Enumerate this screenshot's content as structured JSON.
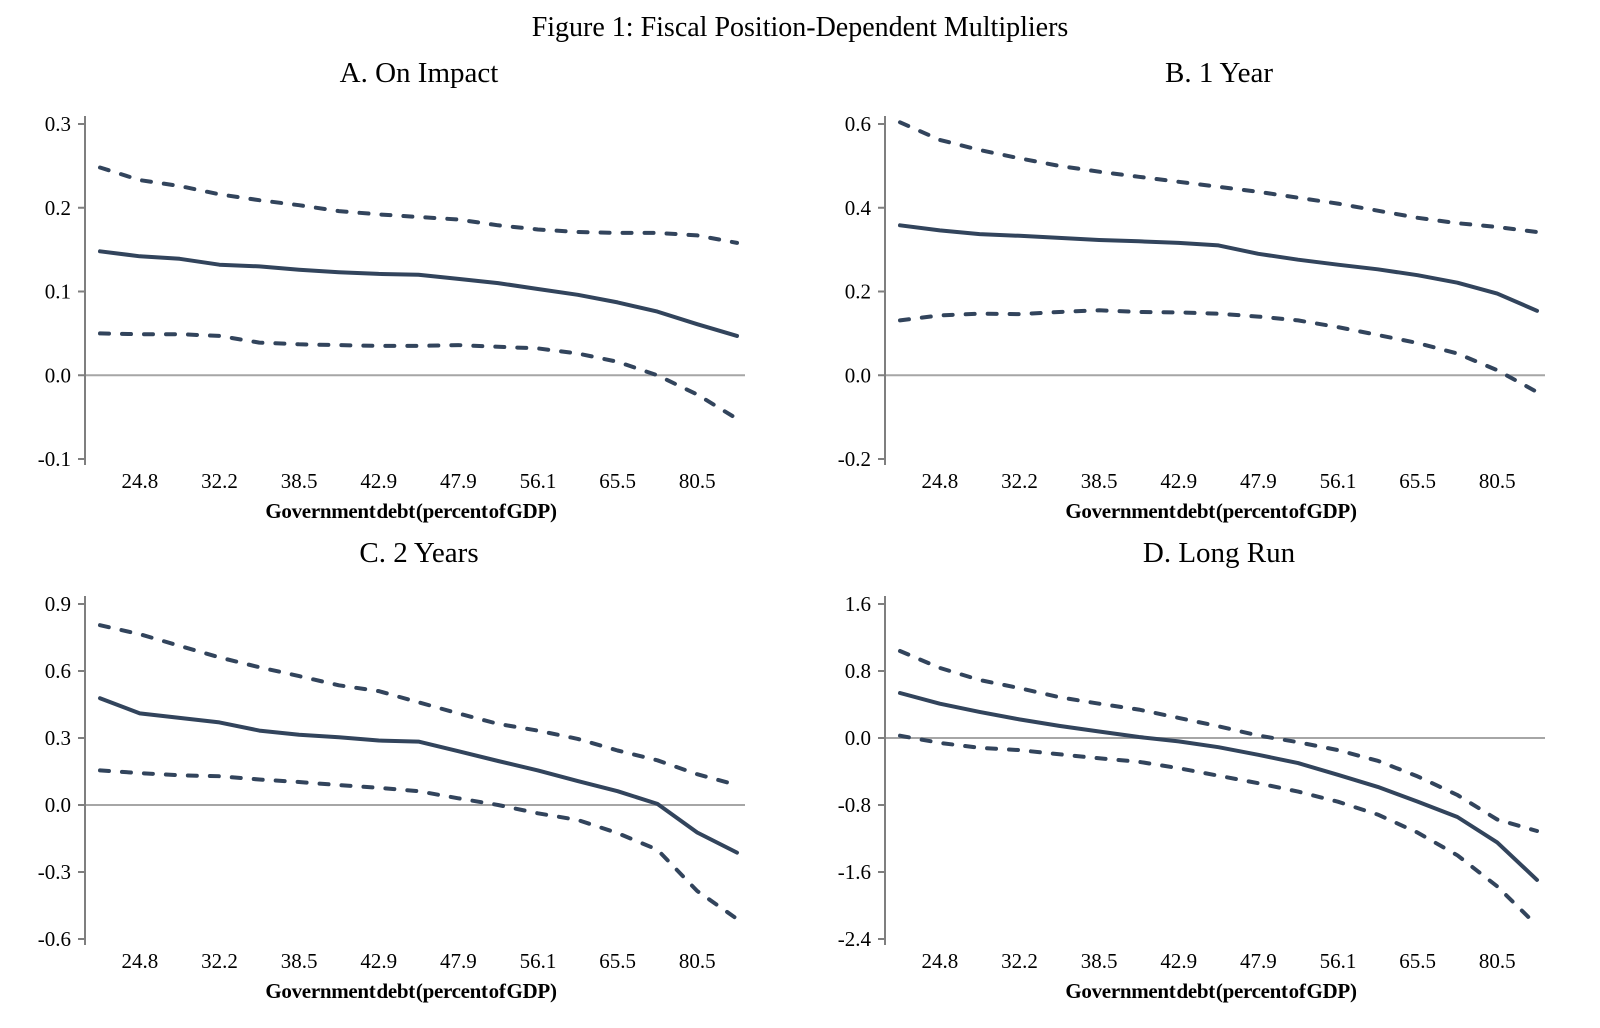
{
  "figure": {
    "title": "Figure 1: Fiscal Position-Dependent Multipliers"
  },
  "colors": {
    "line": "#32445c",
    "zero_line": "#a6a6a6",
    "axis": "#7f7f7f",
    "text": "#000000",
    "background": "#ffffff"
  },
  "chart_data": [
    {
      "id": "A",
      "type": "line",
      "title": "A. On Impact",
      "xlabel": "Government debt (percent of GDP)",
      "x_tick_labels": [
        "24.8",
        "32.2",
        "38.5",
        "42.9",
        "47.9",
        "56.1",
        "65.5",
        "80.5"
      ],
      "x_tick_indices": [
        1,
        3,
        5,
        7,
        9,
        11,
        13,
        15
      ],
      "n_points": 17,
      "ylim": [
        -0.1,
        0.3
      ],
      "y_tick_labels": [
        "0.3",
        "0.2",
        "0.1",
        "0.0",
        "-0.1"
      ],
      "zero_line": true,
      "legend": "none",
      "grid": false,
      "series": [
        {
          "name": "point estimate",
          "line_style": "solid",
          "values": [
            0.148,
            0.142,
            0.139,
            0.132,
            0.13,
            0.126,
            0.123,
            0.121,
            0.12,
            0.115,
            0.11,
            0.103,
            0.096,
            0.087,
            0.076,
            0.061,
            0.047
          ]
        },
        {
          "name": "upper confidence band",
          "line_style": "dashed",
          "values": [
            0.248,
            0.233,
            0.226,
            0.216,
            0.209,
            0.203,
            0.196,
            0.192,
            0.189,
            0.186,
            0.179,
            0.174,
            0.171,
            0.17,
            0.17,
            0.167,
            0.158
          ]
        },
        {
          "name": "lower confidence band",
          "line_style": "dashed",
          "values": [
            0.05,
            0.049,
            0.049,
            0.047,
            0.039,
            0.037,
            0.036,
            0.035,
            0.035,
            0.036,
            0.034,
            0.032,
            0.026,
            0.016,
            0.0,
            -0.023,
            -0.052
          ]
        }
      ]
    },
    {
      "id": "B",
      "type": "line",
      "title": "B. 1 Year",
      "xlabel": "Government debt (percent of GDP)",
      "x_tick_labels": [
        "24.8",
        "32.2",
        "38.5",
        "42.9",
        "47.9",
        "56.1",
        "65.5",
        "80.5"
      ],
      "x_tick_indices": [
        1,
        3,
        5,
        7,
        9,
        11,
        13,
        15
      ],
      "n_points": 17,
      "ylim": [
        -0.2,
        0.6
      ],
      "y_tick_labels": [
        "0.6",
        "0.4",
        "0.2",
        "0.0",
        "-0.2"
      ],
      "zero_line": true,
      "legend": "none",
      "grid": false,
      "series": [
        {
          "name": "point estimate",
          "line_style": "solid",
          "values": [
            0.358,
            0.346,
            0.337,
            0.333,
            0.328,
            0.323,
            0.32,
            0.316,
            0.31,
            0.29,
            0.276,
            0.264,
            0.253,
            0.239,
            0.221,
            0.195,
            0.154
          ]
        },
        {
          "name": "upper confidence band",
          "line_style": "dashed",
          "values": [
            0.604,
            0.562,
            0.538,
            0.518,
            0.5,
            0.486,
            0.474,
            0.462,
            0.45,
            0.438,
            0.424,
            0.41,
            0.393,
            0.376,
            0.363,
            0.354,
            0.342
          ]
        },
        {
          "name": "lower confidence band",
          "line_style": "dashed",
          "values": [
            0.131,
            0.143,
            0.147,
            0.146,
            0.151,
            0.155,
            0.151,
            0.15,
            0.147,
            0.14,
            0.131,
            0.115,
            0.096,
            0.077,
            0.052,
            0.012,
            -0.04
          ]
        }
      ]
    },
    {
      "id": "C",
      "type": "line",
      "title": "C. 2 Years",
      "xlabel": "Government debt (percent of GDP)",
      "x_tick_labels": [
        "24.8",
        "32.2",
        "38.5",
        "42.9",
        "47.9",
        "56.1",
        "65.5",
        "80.5"
      ],
      "x_tick_indices": [
        1,
        3,
        5,
        7,
        9,
        11,
        13,
        15
      ],
      "n_points": 17,
      "ylim": [
        -0.6,
        0.9
      ],
      "y_tick_labels": [
        "0.9",
        "0.6",
        "0.3",
        "0.0",
        "-0.3",
        "-0.6"
      ],
      "zero_line": true,
      "legend": "none",
      "grid": false,
      "series": [
        {
          "name": "point estimate",
          "line_style": "solid",
          "values": [
            0.478,
            0.41,
            0.39,
            0.37,
            0.333,
            0.315,
            0.303,
            0.289,
            0.284,
            0.241,
            0.197,
            0.155,
            0.107,
            0.062,
            0.005,
            -0.123,
            -0.213
          ]
        },
        {
          "name": "upper confidence band",
          "line_style": "dashed",
          "values": [
            0.805,
            0.765,
            0.713,
            0.661,
            0.617,
            0.577,
            0.536,
            0.51,
            0.46,
            0.41,
            0.363,
            0.333,
            0.296,
            0.244,
            0.2,
            0.138,
            0.089
          ]
        },
        {
          "name": "lower confidence band",
          "line_style": "dashed",
          "values": [
            0.155,
            0.143,
            0.133,
            0.129,
            0.114,
            0.103,
            0.089,
            0.077,
            0.062,
            0.03,
            0.0,
            -0.037,
            -0.067,
            -0.126,
            -0.2,
            -0.385,
            -0.51
          ]
        }
      ]
    },
    {
      "id": "D",
      "type": "line",
      "title": "D. Long Run",
      "xlabel": "Government debt (percent of GDP)",
      "x_tick_labels": [
        "24.8",
        "32.2",
        "38.5",
        "42.9",
        "47.9",
        "56.1",
        "65.5",
        "80.5"
      ],
      "x_tick_indices": [
        1,
        3,
        5,
        7,
        9,
        11,
        13,
        15
      ],
      "n_points": 17,
      "ylim": [
        -2.4,
        1.6
      ],
      "y_tick_labels": [
        "1.6",
        "0.8",
        "0.0",
        "-0.8",
        "-1.6",
        "-2.4"
      ],
      "zero_line": true,
      "legend": "none",
      "grid": false,
      "series": [
        {
          "name": "point estimate",
          "line_style": "solid",
          "values": [
            0.537,
            0.409,
            0.312,
            0.222,
            0.144,
            0.078,
            0.012,
            -0.04,
            -0.11,
            -0.2,
            -0.3,
            -0.44,
            -0.584,
            -0.759,
            -0.943,
            -1.246,
            -1.694
          ]
        },
        {
          "name": "upper confidence band",
          "line_style": "dashed",
          "values": [
            1.039,
            0.837,
            0.693,
            0.596,
            0.487,
            0.409,
            0.339,
            0.24,
            0.14,
            0.03,
            -0.05,
            -0.144,
            -0.272,
            -0.459,
            -0.681,
            -0.973,
            -1.11
          ]
        },
        {
          "name": "lower confidence band",
          "line_style": "dashed",
          "values": [
            0.027,
            -0.058,
            -0.117,
            -0.144,
            -0.195,
            -0.242,
            -0.284,
            -0.36,
            -0.45,
            -0.54,
            -0.64,
            -0.76,
            -0.915,
            -1.13,
            -1.4,
            -1.772,
            -2.239
          ]
        }
      ]
    }
  ]
}
